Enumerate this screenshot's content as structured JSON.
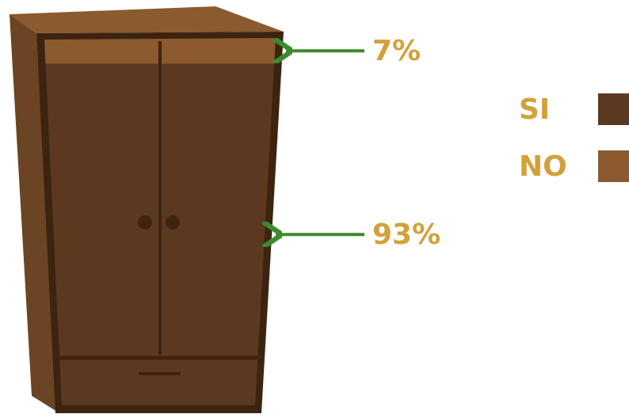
{
  "chart_data": {
    "type": "pictogram",
    "categories": [
      "SI",
      "NO"
    ],
    "values": [
      93,
      7
    ],
    "value_labels": [
      "93%",
      "7%"
    ],
    "colors": [
      "#5b3920",
      "#8b5a2f"
    ]
  }
}
